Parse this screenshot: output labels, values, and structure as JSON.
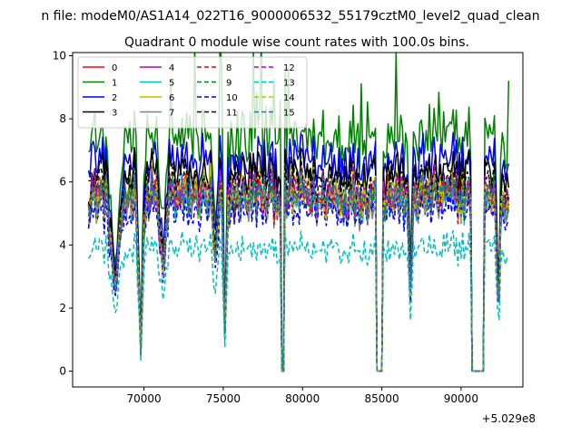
{
  "figure": {
    "suptitle": "n file: modeM0/AS1A14_022T16_9000006532_55179cztM0_level2_quad_clean",
    "x_offset_label": "+5.029e8"
  },
  "chart_data": {
    "type": "line",
    "title": "Quadrant 0 module wise count rates with 100.0s bins.",
    "xlabel": "",
    "ylabel": "",
    "xlim": [
      65500,
      93900
    ],
    "ylim": [
      -0.5,
      10.1
    ],
    "x_offset": 502900000,
    "xticks": [
      70000,
      75000,
      80000,
      85000,
      90000
    ],
    "xtick_labels": [
      "70000",
      "75000",
      "80000",
      "85000",
      "90000"
    ],
    "yticks": [
      0,
      2,
      4,
      6,
      8,
      10
    ],
    "ytick_labels": [
      "0",
      "2",
      "4",
      "6",
      "8",
      "10"
    ],
    "grid": false,
    "legend_position": "top-left",
    "legend_columns": 4,
    "x_start": 66500,
    "x_end": 93000,
    "bin_size": 100,
    "gaps": [
      {
        "start": 78700,
        "end": 78800
      },
      {
        "start": 84700,
        "end": 85000
      },
      {
        "start": 90700,
        "end": 91400
      }
    ],
    "dips": [
      {
        "center": 68200,
        "width": 600,
        "depth": 0.55
      },
      {
        "center": 69800,
        "width": 280,
        "depth": 0.9
      },
      {
        "center": 71200,
        "width": 400,
        "depth": 0.45
      },
      {
        "center": 74500,
        "width": 300,
        "depth": 0.4
      },
      {
        "center": 75100,
        "width": 220,
        "depth": 0.8
      },
      {
        "center": 86800,
        "width": 200,
        "depth": 0.6
      },
      {
        "center": 92350,
        "width": 180,
        "depth": 0.75
      }
    ],
    "series": [
      {
        "name": "0",
        "color": "#ff0000",
        "dash": "solid",
        "level": 5.6
      },
      {
        "name": "1",
        "color": "#008000",
        "dash": "solid",
        "level": 7.4
      },
      {
        "name": "2",
        "color": "#0000ff",
        "dash": "solid",
        "level": 6.7
      },
      {
        "name": "3",
        "color": "#000000",
        "dash": "solid",
        "level": 6.3
      },
      {
        "name": "4",
        "color": "#bf00bf",
        "dash": "solid",
        "level": 5.5
      },
      {
        "name": "5",
        "color": "#00bfbf",
        "dash": "solid",
        "level": 5.4
      },
      {
        "name": "6",
        "color": "#bfbf00",
        "dash": "solid",
        "level": 5.8
      },
      {
        "name": "7",
        "color": "#808080",
        "dash": "solid",
        "level": 5.3
      },
      {
        "name": "8",
        "color": "#ff0000",
        "dash": "dashed",
        "level": 5.5
      },
      {
        "name": "9",
        "color": "#008000",
        "dash": "dashed",
        "level": 5.6
      },
      {
        "name": "10",
        "color": "#0000ff",
        "dash": "dashed",
        "level": 5.1
      },
      {
        "name": "11",
        "color": "#000000",
        "dash": "dashed",
        "level": 6.0
      },
      {
        "name": "12",
        "color": "#bf00bf",
        "dash": "dashed",
        "level": 5.7
      },
      {
        "name": "13",
        "color": "#00bfbf",
        "dash": "dashed",
        "level": 3.9
      },
      {
        "name": "14",
        "color": "#bfbf00",
        "dash": "dashed",
        "level": 5.5
      },
      {
        "name": "15",
        "color": "#1f77b4",
        "dash": "dashed",
        "level": 5.6
      }
    ]
  }
}
